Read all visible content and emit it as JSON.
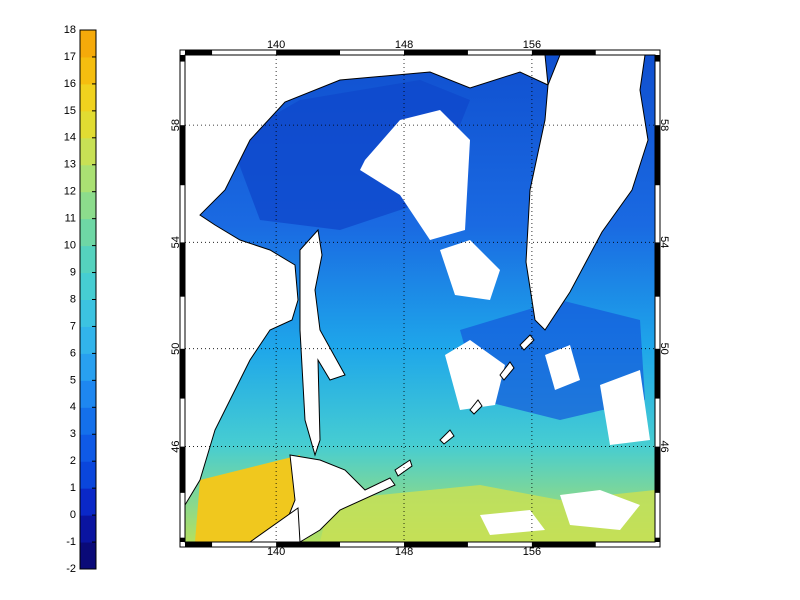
{
  "colorbar": {
    "lim": [
      -2,
      18
    ],
    "ticks": [
      -2,
      -1,
      0,
      1,
      2,
      3,
      4,
      5,
      6,
      7,
      8,
      9,
      10,
      11,
      12,
      13,
      14,
      15,
      16,
      17,
      18
    ],
    "colormap": [
      "#0a0a78",
      "#0a14a0",
      "#0a28c8",
      "#0a46dc",
      "#0f5ae6",
      "#1470eb",
      "#1e87f0",
      "#28a0f0",
      "#32b4eb",
      "#3cc3e1",
      "#46cdd2",
      "#55d2be",
      "#6ed7a5",
      "#8cdc8c",
      "#aae173",
      "#c8e155",
      "#e1dc32",
      "#f0d21e",
      "#f5be0f",
      "#f5aa0a"
    ]
  },
  "map": {
    "lon_lim": [
      134.3,
      163.7
    ],
    "lat_lim": [
      41.8,
      60.2
    ],
    "lon_ticks": [
      140,
      148,
      156
    ],
    "lat_ticks": [
      46,
      50,
      54,
      58
    ],
    "grid": true
  }
}
